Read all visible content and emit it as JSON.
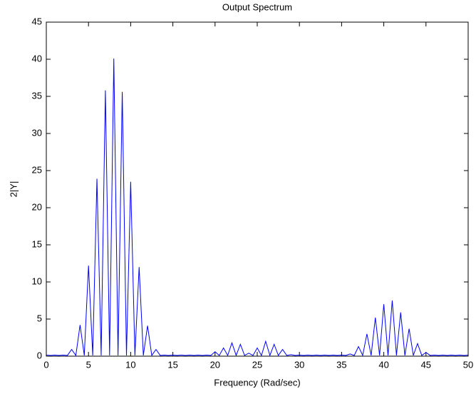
{
  "chart_data": {
    "type": "line",
    "title": "Output Spectrum",
    "x_label": "Frequency (Rad/sec)",
    "y_label": "2|Y|",
    "x": [
      0,
      0.5,
      1,
      1.5,
      2,
      2.5,
      3,
      3.5,
      4,
      4.5,
      5,
      5.5,
      6,
      6.5,
      7,
      7.5,
      8,
      8.5,
      9,
      9.5,
      10,
      10.5,
      11,
      11.5,
      12,
      12.5,
      13,
      13.5,
      14,
      14.5,
      15,
      15.5,
      16,
      16.5,
      17,
      17.5,
      18,
      18.5,
      19,
      19.5,
      20,
      20.5,
      21,
      21.5,
      22,
      22.5,
      23,
      23.5,
      24,
      24.5,
      25,
      25.5,
      26,
      26.5,
      27,
      27.5,
      28,
      28.5,
      29,
      29.5,
      30,
      30.5,
      31,
      31.5,
      32,
      32.5,
      33,
      33.5,
      34,
      34.5,
      35,
      35.5,
      36,
      36.5,
      37,
      37.5,
      38,
      38.5,
      39,
      39.5,
      40,
      40.5,
      41,
      41.5,
      42,
      42.5,
      43,
      43.5,
      44,
      44.5,
      45,
      45.5,
      46,
      46.5,
      47,
      47.5,
      48,
      48.5,
      49,
      49.5,
      50
    ],
    "series": [
      {
        "color": "#0000ff",
        "values": [
          0.15,
          0.1,
          0.15,
          0.1,
          0.15,
          0.1,
          0.9,
          0.1,
          4.2,
          0.1,
          12.2,
          0.1,
          23.9,
          0.1,
          35.8,
          0.1,
          40.1,
          0.1,
          35.6,
          0.1,
          23.5,
          0.1,
          12,
          0.1,
          4.1,
          0.1,
          0.9,
          0.1,
          0.15,
          0.1,
          0.15,
          0.1,
          0.15,
          0.1,
          0.15,
          0.1,
          0.15,
          0.1,
          0.15,
          0.1,
          0.6,
          0.1,
          1.1,
          0.1,
          1.8,
          0.1,
          1.6,
          0.1,
          0.4,
          0.1,
          1.1,
          0.1,
          2,
          0.1,
          1.6,
          0.1,
          0.9,
          0.1,
          0.2,
          0.1,
          0.15,
          0.1,
          0.15,
          0.1,
          0.15,
          0.1,
          0.15,
          0.1,
          0.15,
          0.1,
          0.15,
          0.1,
          0.3,
          0.1,
          1.3,
          0.1,
          3,
          0.1,
          5.2,
          0.1,
          7,
          0.1,
          7.5,
          0.1,
          5.9,
          0.1,
          3.7,
          0.1,
          1.7,
          0.1,
          0.5,
          0.1,
          0.15,
          0.1,
          0.15,
          0.1,
          0.15,
          0.1,
          0.15,
          0.1,
          0.15
        ]
      }
    ],
    "xlim": [
      0,
      50
    ],
    "xticks": [
      0,
      5,
      10,
      15,
      20,
      25,
      30,
      35,
      40,
      45,
      50
    ],
    "ylim": [
      0,
      45
    ],
    "yticks": [
      0,
      5,
      10,
      15,
      20,
      25,
      30,
      35,
      40,
      45
    ],
    "grid": false
  }
}
